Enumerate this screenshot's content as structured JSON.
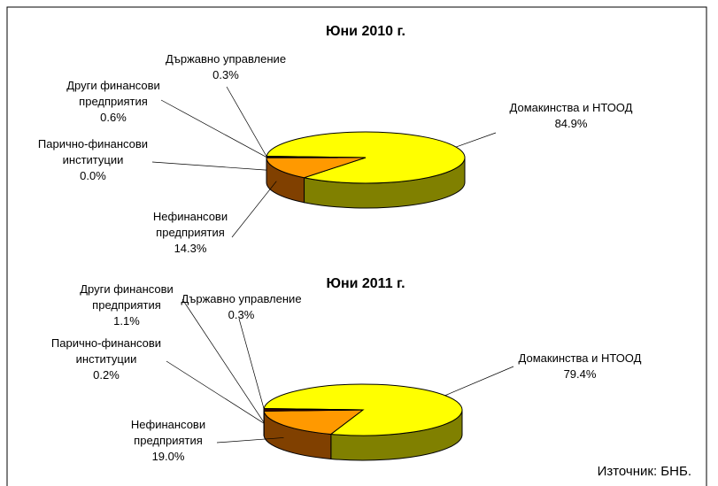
{
  "chart_data": [
    {
      "type": "pie",
      "title": "Юни 2010 г.",
      "categories": [
        "Домакинства и НТООД",
        "Нефинансови предприятия",
        "Парично-финансови институции",
        "Други финансови предприятия",
        "Държавно управление"
      ],
      "values": [
        84.9,
        14.3,
        0.0,
        0.6,
        0.3
      ],
      "value_labels": [
        "84.9%",
        "14.3%",
        "0.0%",
        "0.6%",
        "0.3%"
      ],
      "colors": [
        "#ffff00",
        "#ff9900",
        "#3366ff",
        "#800000",
        "#000080"
      ]
    },
    {
      "type": "pie",
      "title": "Юни 2011 г.",
      "categories": [
        "Домакинства и НТООД",
        "Нефинансови предприятия",
        "Парично-финансови институции",
        "Други финансови предприятия",
        "Държавно управление"
      ],
      "values": [
        79.4,
        19.0,
        0.2,
        1.1,
        0.3
      ],
      "value_labels": [
        "79.4%",
        "19.0%",
        "0.2%",
        "1.1%",
        "0.3%"
      ],
      "colors": [
        "#ffff00",
        "#ff9900",
        "#3366ff",
        "#800000",
        "#000080"
      ]
    }
  ],
  "source": "Източник: БНБ."
}
